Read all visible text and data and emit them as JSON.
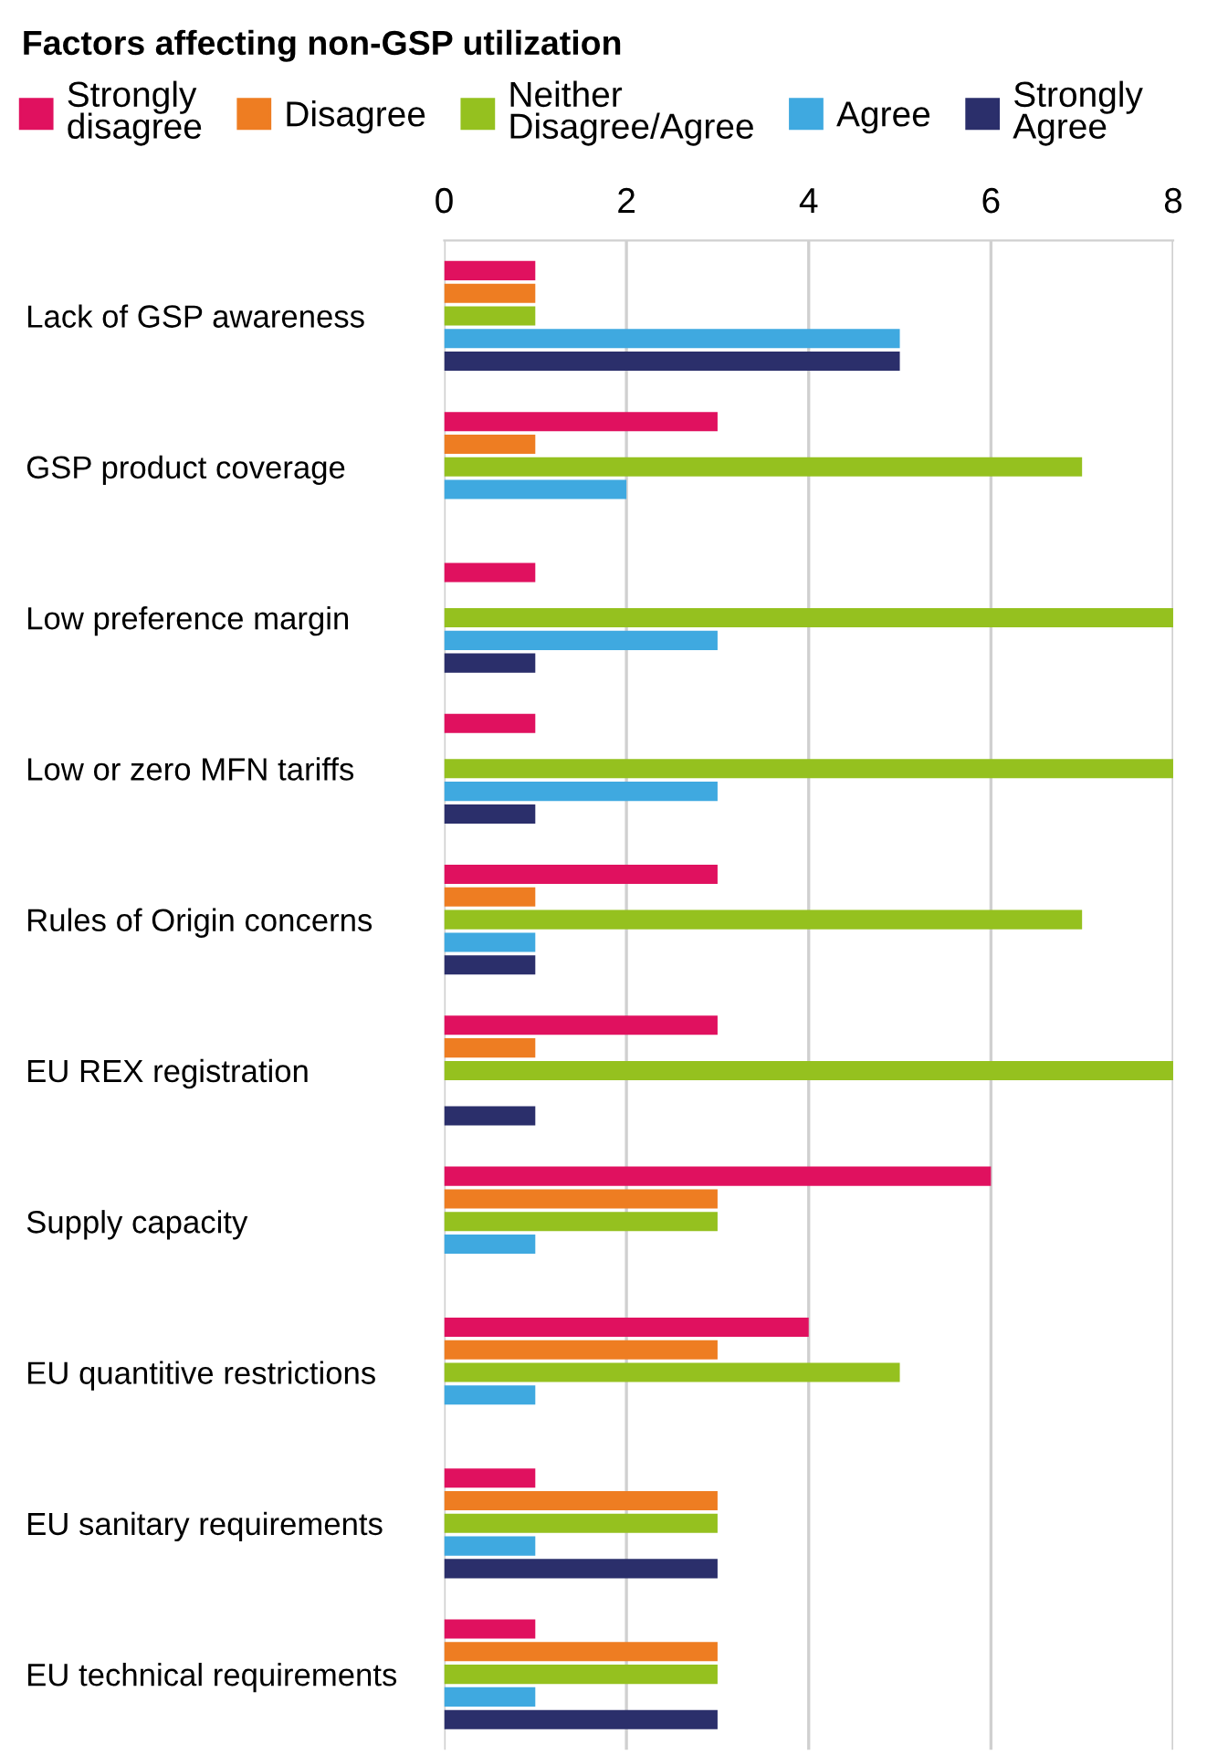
{
  "chart_data": {
    "type": "bar",
    "orientation": "horizontal",
    "title": "Factors affecting non-GSP utilization",
    "categories": [
      "Lack of GSP awareness",
      "GSP product coverage",
      "Low preference margin",
      "Low or zero MFN tariffs",
      "Rules of Origin concerns",
      "EU REX registration",
      "Supply capacity",
      "EU quantitive restrictions",
      "EU sanitary requirements",
      "EU technical requirements"
    ],
    "series": [
      {
        "name": "Strongly\ndisagree",
        "color": "#e0115f",
        "values": [
          1,
          3,
          1,
          1,
          3,
          3,
          6,
          4,
          1,
          1
        ]
      },
      {
        "name": "Disagree",
        "color": "#ee7d22",
        "values": [
          1,
          1,
          0,
          0,
          1,
          1,
          3,
          3,
          3,
          3
        ]
      },
      {
        "name": "Neither\nDisagree/Agree",
        "color": "#95c11f",
        "values": [
          1,
          7,
          8,
          8,
          7,
          8,
          3,
          5,
          3,
          3
        ]
      },
      {
        "name": "Agree",
        "color": "#3fa9e0",
        "values": [
          5,
          2,
          3,
          3,
          1,
          0,
          1,
          1,
          1,
          1
        ]
      },
      {
        "name": "Strongly\nAgree",
        "color": "#2b2f6b",
        "values": [
          5,
          0,
          1,
          1,
          1,
          1,
          0,
          0,
          3,
          3
        ]
      }
    ],
    "xlim": [
      0,
      8
    ],
    "xticks": [
      0,
      2,
      4,
      6,
      8
    ],
    "grid": "x",
    "legend": "top"
  }
}
